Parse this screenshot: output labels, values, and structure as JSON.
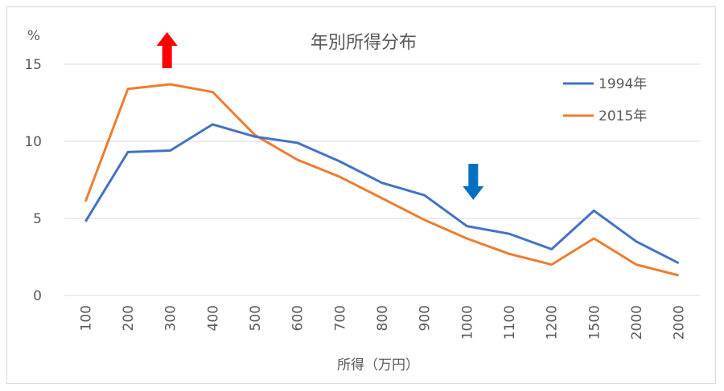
{
  "chart_data": {
    "type": "line",
    "title": "年別所得分布",
    "ylabel": "%",
    "xlabel": "所得（万円）",
    "ylim": [
      0,
      15
    ],
    "yticks": [
      0,
      5,
      10,
      15
    ],
    "grid": true,
    "legend_position": "top-right",
    "categories": [
      "100",
      "200",
      "300",
      "400",
      "500",
      "600",
      "700",
      "800",
      "900",
      "1000",
      "1100",
      "1200",
      "1500",
      "2000",
      "2000"
    ],
    "series": [
      {
        "name": "1994年",
        "color": "#4472c4",
        "values": [
          4.8,
          9.3,
          9.4,
          11.1,
          10.3,
          9.9,
          8.7,
          7.3,
          6.5,
          4.5,
          4.0,
          3.0,
          5.5,
          3.5,
          2.1
        ]
      },
      {
        "name": "2015年",
        "color": "#ed7d31",
        "values": [
          6.1,
          13.4,
          13.7,
          13.2,
          10.4,
          8.8,
          7.7,
          6.3,
          4.9,
          3.7,
          2.7,
          2.0,
          3.7,
          2.0,
          1.3
        ]
      }
    ],
    "annotations": [
      {
        "type": "arrow-up-icon",
        "color": "#ff0000",
        "near_category_index": 2
      },
      {
        "type": "arrow-down-icon",
        "color": "#0070c0",
        "near_category_index": 9
      }
    ]
  }
}
